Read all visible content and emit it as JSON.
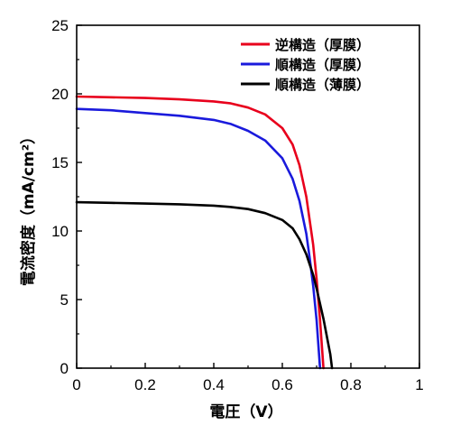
{
  "chart_data": {
    "type": "line",
    "title": "",
    "xlabel": "電圧（V）",
    "ylabel": "電流密度（mA/cm²）",
    "xlim": [
      0,
      1
    ],
    "ylim": [
      0,
      25
    ],
    "x_ticks": [
      "0",
      "0.2",
      "0.4",
      "0.6",
      "0.8",
      "1"
    ],
    "y_ticks": [
      "0",
      "5",
      "10",
      "15",
      "20",
      "25"
    ],
    "legend_position": "top-right",
    "grid": false,
    "series": [
      {
        "name": "逆構造（厚膜）",
        "color": "#e8001c",
        "points": [
          [
            0,
            19.8
          ],
          [
            0.1,
            19.75
          ],
          [
            0.2,
            19.7
          ],
          [
            0.3,
            19.6
          ],
          [
            0.4,
            19.45
          ],
          [
            0.45,
            19.3
          ],
          [
            0.5,
            19.0
          ],
          [
            0.55,
            18.5
          ],
          [
            0.6,
            17.5
          ],
          [
            0.63,
            16.3
          ],
          [
            0.65,
            14.8
          ],
          [
            0.67,
            12.5
          ],
          [
            0.69,
            9.0
          ],
          [
            0.7,
            6.5
          ],
          [
            0.71,
            3.5
          ],
          [
            0.72,
            0.0
          ]
        ]
      },
      {
        "name": "順構造（厚膜）",
        "color": "#1a1adc",
        "points": [
          [
            0,
            18.9
          ],
          [
            0.1,
            18.8
          ],
          [
            0.2,
            18.6
          ],
          [
            0.3,
            18.4
          ],
          [
            0.4,
            18.1
          ],
          [
            0.45,
            17.8
          ],
          [
            0.5,
            17.3
          ],
          [
            0.55,
            16.6
          ],
          [
            0.6,
            15.3
          ],
          [
            0.63,
            13.8
          ],
          [
            0.65,
            12.2
          ],
          [
            0.67,
            9.8
          ],
          [
            0.68,
            8.0
          ],
          [
            0.69,
            6.0
          ],
          [
            0.7,
            3.5
          ],
          [
            0.71,
            0.0
          ]
        ]
      },
      {
        "name": "順構造（薄膜）",
        "color": "#000000",
        "points": [
          [
            0,
            12.1
          ],
          [
            0.1,
            12.05
          ],
          [
            0.2,
            12.0
          ],
          [
            0.3,
            11.95
          ],
          [
            0.4,
            11.85
          ],
          [
            0.45,
            11.75
          ],
          [
            0.5,
            11.6
          ],
          [
            0.55,
            11.3
          ],
          [
            0.6,
            10.8
          ],
          [
            0.63,
            10.2
          ],
          [
            0.65,
            9.4
          ],
          [
            0.67,
            8.3
          ],
          [
            0.69,
            6.8
          ],
          [
            0.7,
            5.8
          ],
          [
            0.72,
            3.6
          ],
          [
            0.74,
            1.0
          ],
          [
            0.745,
            0.0
          ]
        ]
      }
    ]
  }
}
